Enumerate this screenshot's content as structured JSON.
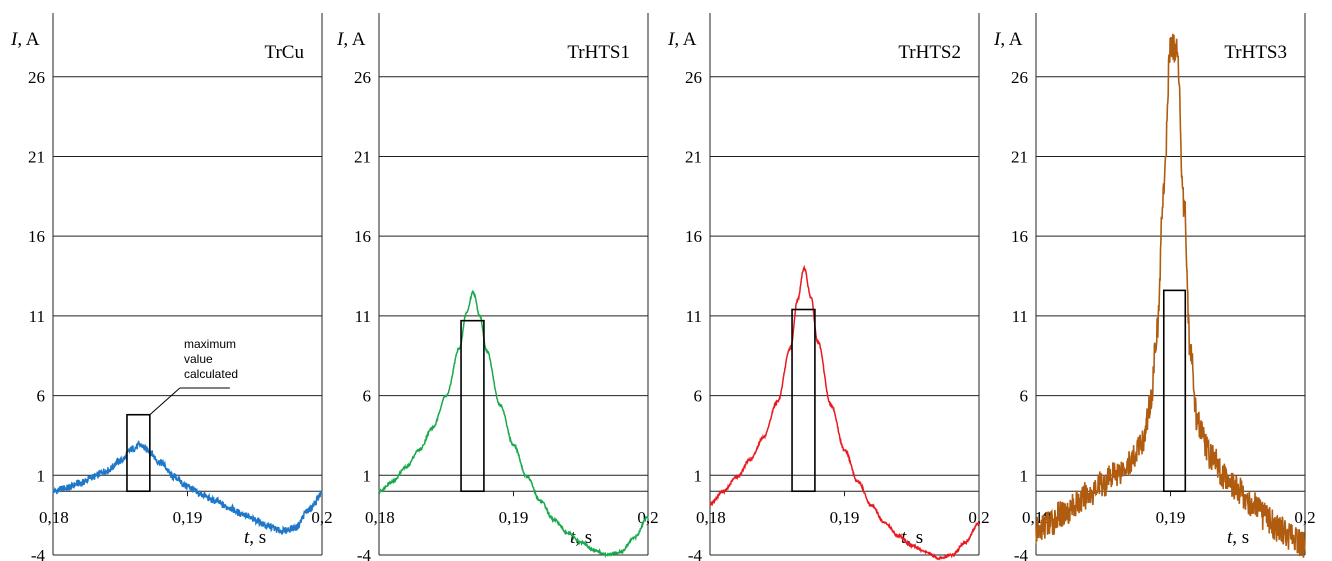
{
  "chart_data": [
    {
      "type": "line",
      "title": "TrCu",
      "xlabel_var": "t",
      "xlabel_unit": ", s",
      "ylabel_var": "I",
      "ylabel_unit": ", A",
      "xlim": [
        0.18,
        0.2
      ],
      "ylim": [
        -4,
        30
      ],
      "x_ticks": [
        "0,18",
        "0,19",
        "0,2"
      ],
      "y_ticks": [
        "-4",
        "1",
        "6",
        "11",
        "16",
        "21",
        "26"
      ],
      "grid": true,
      "color": "#1f77c8",
      "series": [
        {
          "x": [
            0.18,
            0.181,
            0.182,
            0.183,
            0.184,
            0.185,
            0.186,
            0.1865,
            0.187,
            0.188,
            0.189,
            0.19,
            0.191,
            0.192,
            0.193,
            0.194,
            0.195,
            0.196,
            0.197,
            0.198,
            0.199,
            0.2
          ],
          "y": [
            0.0,
            0.2,
            0.5,
            0.9,
            1.3,
            1.9,
            2.7,
            2.9,
            2.6,
            1.8,
            0.9,
            0.3,
            -0.2,
            -0.6,
            -1.0,
            -1.4,
            -1.8,
            -2.2,
            -2.5,
            -2.3,
            -1.2,
            -0.2
          ]
        }
      ],
      "box": {
        "x0": 0.1855,
        "x1": 0.1872,
        "y_top": 4.8
      },
      "annotation": [
        "maximum",
        "value",
        "calculated"
      ]
    },
    {
      "type": "line",
      "title": "TrHTS1",
      "xlabel_var": "t",
      "xlabel_unit": ", s",
      "ylabel_var": "I",
      "ylabel_unit": ", A",
      "xlim": [
        0.18,
        0.2
      ],
      "ylim": [
        -4,
        30
      ],
      "x_ticks": [
        "0,18",
        "0,19",
        "0,2"
      ],
      "y_ticks": [
        "-4",
        "1",
        "6",
        "11",
        "16",
        "21",
        "26"
      ],
      "grid": true,
      "color": "#1aa84c",
      "series": [
        {
          "x": [
            0.18,
            0.181,
            0.182,
            0.183,
            0.184,
            0.185,
            0.186,
            0.1865,
            0.187,
            0.1875,
            0.188,
            0.189,
            0.19,
            0.191,
            0.192,
            0.193,
            0.194,
            0.195,
            0.196,
            0.197,
            0.198,
            0.199,
            0.2
          ],
          "y": [
            0.0,
            0.6,
            1.5,
            2.6,
            4.0,
            6.0,
            9.0,
            11.2,
            12.5,
            11.0,
            8.8,
            5.4,
            2.9,
            0.9,
            -0.6,
            -1.8,
            -2.6,
            -3.2,
            -3.7,
            -4.0,
            -3.8,
            -2.9,
            -1.6
          ]
        }
      ],
      "box": {
        "x0": 0.1861,
        "x1": 0.1878,
        "y_top": 10.7
      }
    },
    {
      "type": "line",
      "title": "TrHTS2",
      "xlabel_var": "t",
      "xlabel_unit": ", s",
      "ylabel_var": "I",
      "ylabel_unit": ", A",
      "xlim": [
        0.18,
        0.2
      ],
      "ylim": [
        -4,
        30
      ],
      "x_ticks": [
        "0,18",
        "0,19",
        "0,2"
      ],
      "y_ticks": [
        "-4",
        "1",
        "6",
        "11",
        "16",
        "21",
        "26"
      ],
      "grid": true,
      "color": "#e8191f",
      "series": [
        {
          "x": [
            0.18,
            0.181,
            0.182,
            0.183,
            0.184,
            0.185,
            0.186,
            0.1865,
            0.187,
            0.1875,
            0.188,
            0.189,
            0.19,
            0.191,
            0.192,
            0.193,
            0.194,
            0.195,
            0.196,
            0.197,
            0.198,
            0.199,
            0.2
          ],
          "y": [
            -0.8,
            0.0,
            0.9,
            2.0,
            3.4,
            5.6,
            9.0,
            12.0,
            14.0,
            12.2,
            9.4,
            5.4,
            2.6,
            0.6,
            -0.9,
            -2.0,
            -2.8,
            -3.4,
            -3.8,
            -4.2,
            -4.0,
            -3.2,
            -2.0
          ]
        }
      ],
      "box": {
        "x0": 0.1861,
        "x1": 0.1878,
        "y_top": 11.4
      }
    },
    {
      "type": "line",
      "title": "TrHTS3",
      "xlabel_var": "t",
      "xlabel_unit": ", s",
      "ylabel_var": "I",
      "ylabel_unit": ", A",
      "xlim": [
        0.18,
        0.2
      ],
      "ylim": [
        -4,
        30
      ],
      "x_ticks": [
        "0,18",
        "0,19",
        "0,2"
      ],
      "y_ticks": [
        "-4",
        "1",
        "6",
        "11",
        "16",
        "21",
        "26"
      ],
      "grid": true,
      "color": "#b05c10",
      "series": [
        {
          "x": [
            0.18,
            0.181,
            0.182,
            0.183,
            0.184,
            0.185,
            0.186,
            0.187,
            0.188,
            0.1885,
            0.189,
            0.1895,
            0.19,
            0.1905,
            0.191,
            0.1915,
            0.192,
            0.193,
            0.194,
            0.195,
            0.196,
            0.197,
            0.198,
            0.199,
            0.2
          ],
          "y": [
            -2.5,
            -2.0,
            -1.4,
            -0.8,
            -0.1,
            0.5,
            1.2,
            1.8,
            3.2,
            5.5,
            10.0,
            19.0,
            28.0,
            27.5,
            18.0,
            8.5,
            4.2,
            2.2,
            1.0,
            0.1,
            -0.8,
            -1.6,
            -2.3,
            -2.9,
            -3.4
          ]
        }
      ],
      "box": {
        "x0": 0.1895,
        "x1": 0.1911,
        "y_top": 12.6
      }
    }
  ]
}
